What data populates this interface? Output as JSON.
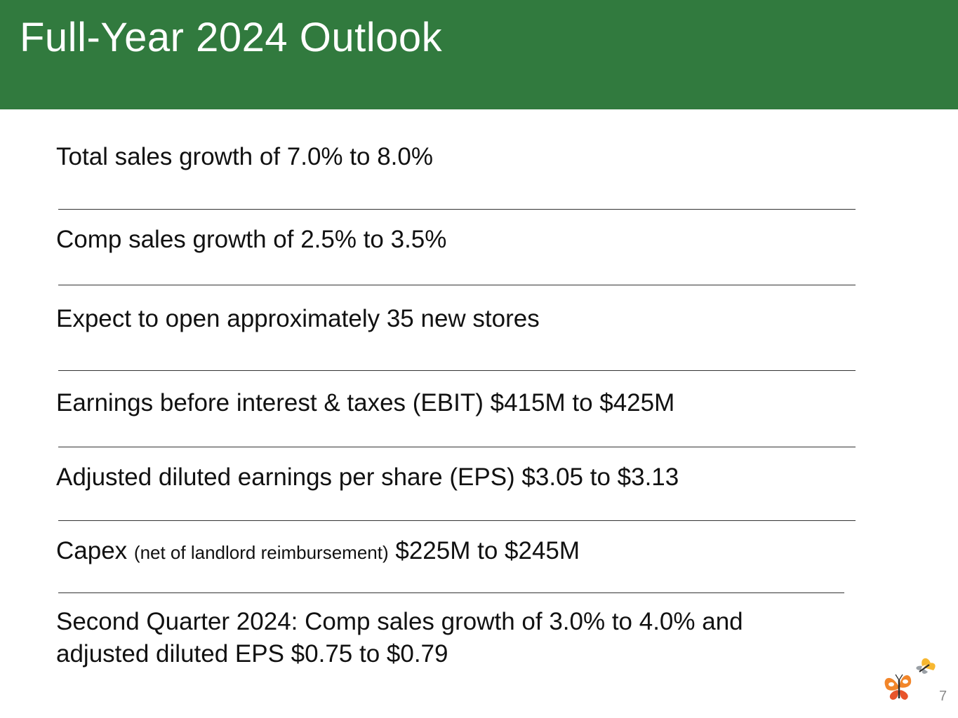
{
  "slide": {
    "title": "Full-Year 2024 Outlook",
    "page_number": "7",
    "colors": {
      "header_bg": "#317a3e",
      "title_text": "#ffffff",
      "body_text": "#111111",
      "butterfly_orange": "#f2862a",
      "butterfly_yellow": "#f7b731"
    },
    "logo_icon": "butterflies-icon"
  },
  "outlook": {
    "total_sales": "Total sales growth of 7.0% to 8.0%",
    "comp_sales": "Comp sales growth of 2.5% to 3.5%",
    "new_stores": "Expect to open approximately 35 new stores",
    "ebit": "Earnings before interest & taxes (EBIT) $415M to $425M",
    "eps": "Adjusted diluted earnings per share (EPS) $3.05 to $3.13",
    "capex_label": "Capex",
    "capex_note": "(net of landlord reimbursement)",
    "capex_value": "$225M to $245M",
    "q2_line1": "Second Quarter 2024: Comp sales growth of 3.0% to 4.0% and",
    "q2_line2": "adjusted diluted EPS $0.75 to $0.79"
  }
}
